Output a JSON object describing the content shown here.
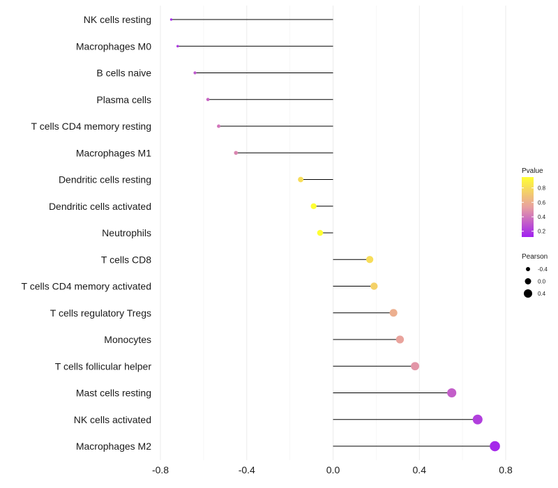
{
  "chart_data": {
    "type": "lollipop",
    "title": "",
    "xlabel": "",
    "ylabel": "",
    "xlim": [
      -0.8,
      0.8
    ],
    "x_ticks": [
      "-0.8",
      "-0.4",
      "0.0",
      "0.4",
      "0.8"
    ],
    "categories": [
      "NK cells resting",
      "Macrophages M0",
      "B cells naive",
      "Plasma cells",
      "T cells CD4 memory resting",
      "Macrophages M1",
      "Dendritic cells resting",
      "Dendritic cells activated",
      "Neutrophils",
      "T cells CD8",
      "T cells CD4 memory activated",
      "T cells regulatory  Tregs ",
      "Monocytes",
      "T cells follicular helper",
      "Mast cells resting",
      "NK cells activated",
      "Macrophages M2"
    ],
    "pearson": [
      -0.75,
      -0.72,
      -0.64,
      -0.58,
      -0.53,
      -0.45,
      -0.15,
      -0.09,
      -0.06,
      0.17,
      0.19,
      0.28,
      0.31,
      0.38,
      0.55,
      0.67,
      0.75
    ],
    "pvalue": [
      0.15,
      0.2,
      0.3,
      0.35,
      0.4,
      0.45,
      0.8,
      0.95,
      0.98,
      0.8,
      0.75,
      0.6,
      0.55,
      0.5,
      0.32,
      0.22,
      0.15
    ],
    "color_legend": {
      "title": "Pvalue",
      "ticks": [
        "0.8",
        "0.6",
        "0.4",
        "0.2"
      ],
      "tick_values": [
        0.8,
        0.6,
        0.4,
        0.2
      ],
      "range": [
        0.12,
        0.95
      ],
      "low_color": "#a020f0",
      "mid_color": "#e8a0a0",
      "high_color": "#ffff33"
    },
    "size_legend": {
      "title": "Pearson",
      "ticks": [
        "-0.4",
        "0.0",
        "0.4"
      ],
      "tick_values": [
        -0.4,
        0.0,
        0.4
      ]
    },
    "grid": true,
    "legend_position": "right"
  }
}
